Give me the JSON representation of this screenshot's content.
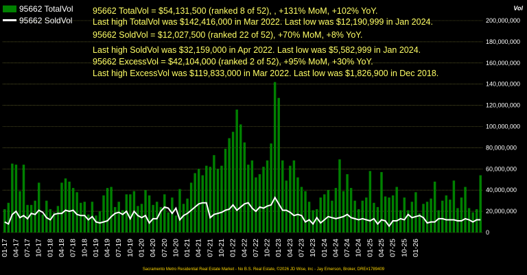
{
  "chart_data": {
    "type": "bar",
    "ylabel": "Vol",
    "ylim": [
      0,
      200000000
    ],
    "y_ticks": [
      "0",
      "20,000,000",
      "40,000,000",
      "60,000,000",
      "80,000,000",
      "100,000,000",
      "120,000,000",
      "140,000,000",
      "160,000,000",
      "180,000,000",
      "200,000,000"
    ],
    "x_tick_labels": [
      "01-17",
      "04-17",
      "07-17",
      "10-17",
      "01-18",
      "04-18",
      "07-18",
      "10-18",
      "01-19",
      "04-19",
      "07-19",
      "10-19",
      "01-20",
      "04-20",
      "07-20",
      "10-20",
      "01-21",
      "04-21",
      "07-21",
      "10-21",
      "01-22",
      "04-22",
      "07-22",
      "10-22",
      "01-23",
      "04-23",
      "07-23",
      "10-23",
      "01-24",
      "04-24",
      "07-24",
      "10-24",
      "01-25",
      "04-25",
      "07-25",
      "10-25",
      "01-26"
    ],
    "series": [
      {
        "name": "95662 TotalVol",
        "color": "#008000",
        "values": [
          22,
          28,
          65,
          64,
          39,
          64,
          26,
          26,
          30,
          47,
          17,
          30,
          22,
          19,
          25,
          47,
          51,
          48,
          42,
          38,
          28,
          29,
          17,
          29,
          16,
          20,
          35,
          42,
          43,
          24,
          29,
          21,
          36,
          36,
          39,
          25,
          27,
          40,
          35,
          26,
          29,
          24,
          36,
          19,
          33,
          16,
          41,
          27,
          32,
          47,
          56,
          60,
          54,
          63,
          62,
          73,
          60,
          63,
          79,
          89,
          95,
          116,
          102,
          85,
          64,
          68,
          52,
          55,
          62,
          68,
          84,
          142,
          127,
          68,
          49,
          63,
          68,
          52,
          43,
          39,
          29,
          21,
          22,
          33,
          36,
          40,
          30,
          42,
          69,
          39,
          55,
          42,
          30,
          22,
          30,
          33,
          58,
          28,
          24,
          57,
          34,
          33,
          35,
          43,
          21,
          33,
          21,
          29,
          38,
          18,
          27,
          29,
          32,
          48,
          21,
          30,
          35,
          31,
          49,
          23,
          33,
          43,
          23,
          19,
          22,
          54
        ],
        "sold_values": [
          10,
          8,
          17,
          20,
          14,
          16,
          13,
          18,
          17,
          21,
          19,
          14,
          12,
          17,
          18,
          18,
          21,
          20,
          21,
          17,
          16,
          16,
          12,
          15,
          10,
          9,
          10,
          11,
          15,
          18,
          19,
          17,
          20,
          13,
          20,
          16,
          14,
          16,
          9,
          13,
          13,
          20,
          24,
          23,
          18,
          23,
          12,
          16,
          18,
          21,
          24,
          27,
          28,
          28,
          14,
          17,
          18,
          19,
          21,
          22,
          26,
          21,
          24,
          27,
          28,
          23,
          20,
          24,
          23,
          25,
          26,
          33,
          27,
          21,
          21,
          19,
          16,
          17,
          16,
          10,
          12,
          8,
          14,
          9,
          12,
          15,
          14,
          13,
          14,
          15,
          17,
          14,
          13,
          12,
          13,
          12,
          11,
          13,
          8,
          12,
          11,
          6,
          11,
          11,
          13,
          12,
          17,
          14,
          15,
          16,
          14,
          9,
          10,
          10,
          13,
          13,
          12,
          12,
          12,
          11,
          11,
          13,
          12,
          10,
          12,
          12
        ]
      },
      {
        "name": "95662 SoldVol",
        "color": "#ffffff"
      }
    ],
    "annotations": [
      "95662 TotalVol = $54,131,500 (ranked 8 of 52), , +131% MoM, +102% YoY.",
      "Last high TotalVol was $142,416,000 in Mar 2022. Last low was $12,190,999 in Jan 2024.",
      "95662 SoldVol = $12,027,500 (ranked 22 of 52), +70% MoM, +8% YoY.",
      "Last high SoldVol was $32,159,000 in Apr 2022. Last low was $5,582,999 in Jan 2024.",
      "95662 ExcessVol = $42,104,000 (ranked 2 of 52), +95% MoM, +30% YoY.",
      "Last high ExcessVol was $119,833,000 in Mar 2022. Last low was $1,826,900 in Dec 2018."
    ],
    "footer": "Sacramento Metro Residential Real Estate Market - No B.S. Real Estate, ©2026 JD Wise, Inc - Jay Emerson, Broker, DRE#1789409"
  }
}
